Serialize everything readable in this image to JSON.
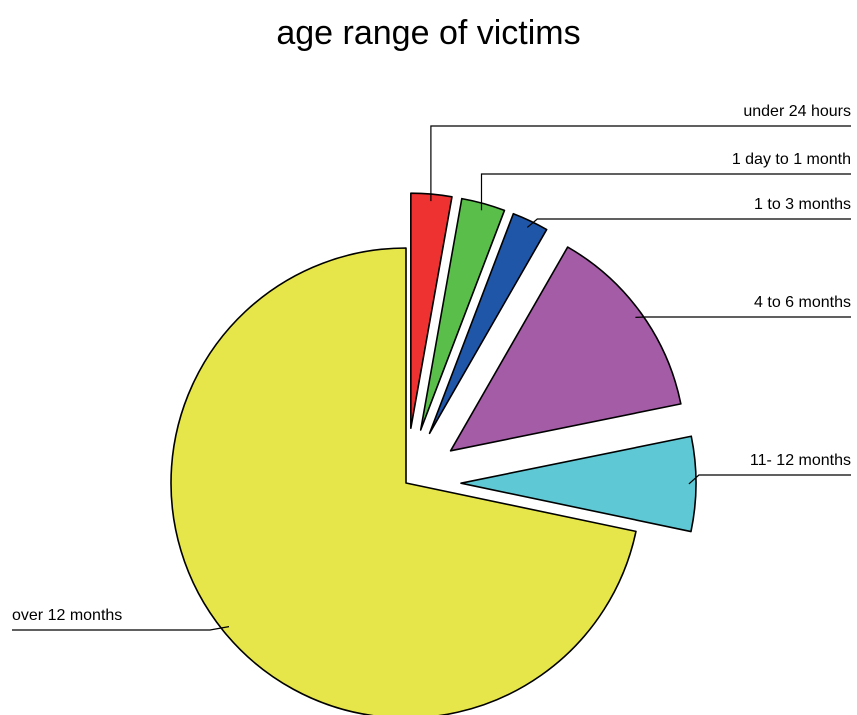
{
  "chart_data": {
    "type": "pie",
    "title": "age range of victims",
    "slices": [
      {
        "label": "under 24 hours",
        "value": 2.8,
        "color": "#ee3232"
      },
      {
        "label": "1 day to 1 month",
        "value": 3.0,
        "color": "#5abe4b"
      },
      {
        "label": "1 to 3 months",
        "value": 2.5,
        "color": "#1f56a8"
      },
      {
        "label": "4 to 6 months",
        "value": 13.5,
        "color": "#a45ca6"
      },
      {
        "label": "11- 12 months",
        "value": 6.5,
        "color": "#5ec8d4"
      },
      {
        "label": "over 12 months",
        "value": 71.7,
        "color": "#e6e64b"
      }
    ],
    "exploded": [
      "under 24 hours",
      "1 day to 1 month",
      "1 to 3 months",
      "4 to 6 months",
      "11- 12 months"
    ],
    "legend": "none",
    "labels": "leader-lines"
  }
}
